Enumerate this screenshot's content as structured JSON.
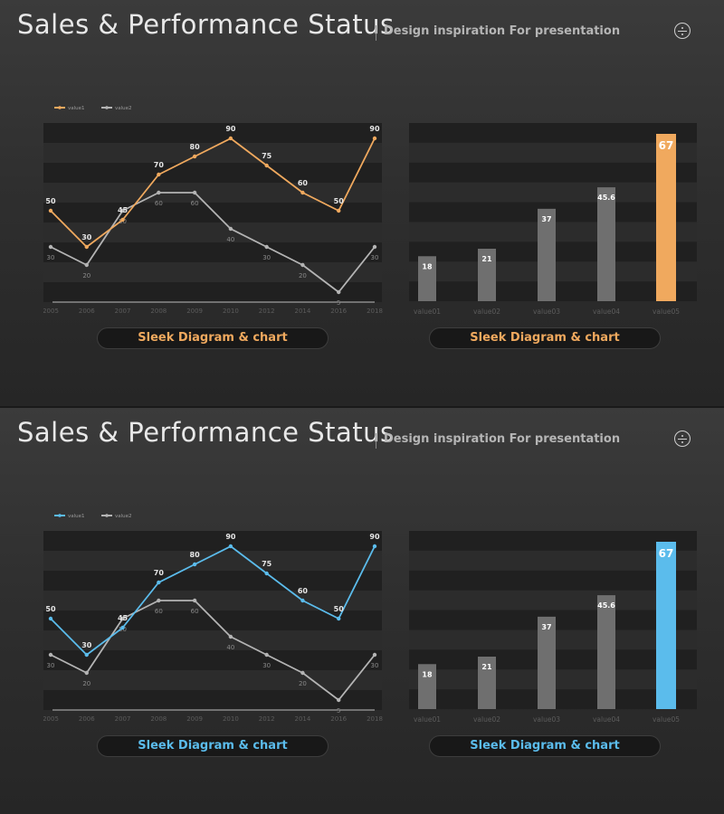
{
  "slides": [
    {
      "title": "Sales & Performance Status",
      "subtitle": "Design inspiration For presentation",
      "accent": "#f0a95e",
      "button_left": "Sleek Diagram & chart",
      "button_right": "Sleek Diagram & chart"
    },
    {
      "title": "Sales & Performance Status",
      "subtitle": "Design inspiration For presentation",
      "accent": "#5bbcec",
      "button_left": "Sleek Diagram & chart",
      "button_right": "Sleek Diagram & chart"
    }
  ],
  "chart_data": [
    {
      "type": "line",
      "categories": [
        "2005",
        "2006",
        "2007",
        "2008",
        "2009",
        "2010",
        "2012",
        "2014",
        "2016",
        "2018"
      ],
      "series": [
        {
          "name": "value1",
          "values": [
            50,
            30,
            45,
            70,
            80,
            90,
            75,
            60,
            50,
            90
          ]
        },
        {
          "name": "value2",
          "values": [
            30,
            20,
            50,
            60,
            60,
            40,
            30,
            20,
            5,
            30
          ]
        }
      ],
      "ylim": [
        0,
        100
      ],
      "grid": "horizontal bands",
      "legend": "top-left"
    },
    {
      "type": "bar",
      "categories": [
        "value01",
        "value02",
        "value03",
        "value04",
        "value05"
      ],
      "values": [
        18,
        21,
        37,
        45.6,
        67
      ],
      "highlight_index": 4,
      "ylim": [
        0,
        67
      ]
    }
  ]
}
